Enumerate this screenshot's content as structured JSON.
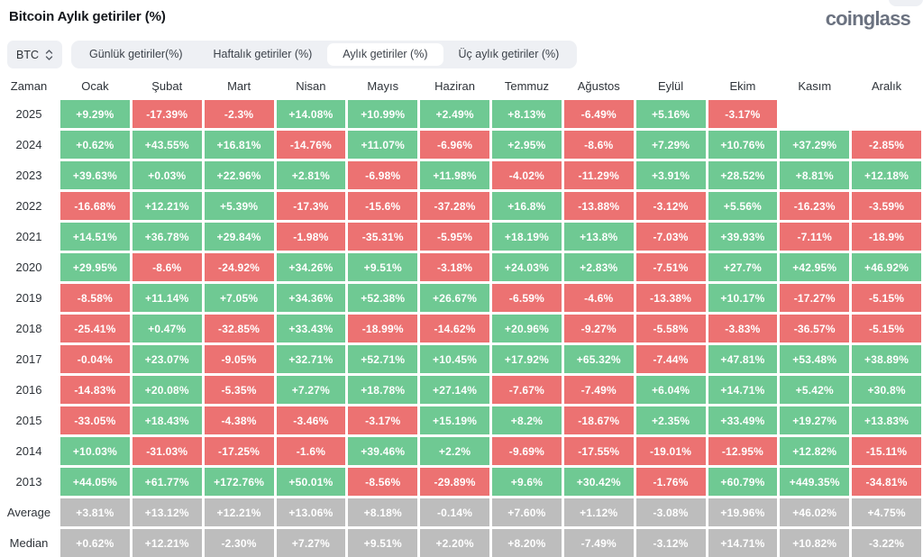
{
  "header": {
    "title": "Bitcoin Aylık getiriler (%)",
    "logo": "coinglass"
  },
  "toolbar": {
    "symbol": "BTC",
    "tabs": [
      {
        "label": "Günlük getiriler(%)",
        "active": false
      },
      {
        "label": "Haftalık getiriler (%)",
        "active": false
      },
      {
        "label": "Aylık getiriler (%)",
        "active": true
      },
      {
        "label": "Üç aylık getiriler (%)",
        "active": false
      }
    ]
  },
  "chart_data": {
    "type": "heatmap",
    "title": "Bitcoin Aylık getiriler (%)",
    "colors": {
      "positive": "#6FC993",
      "negative": "#EC7272",
      "summary": "#BDBDBD"
    },
    "columns": [
      "Zaman",
      "Ocak",
      "Şubat",
      "Mart",
      "Nisan",
      "Mayıs",
      "Haziran",
      "Temmuz",
      "Ağustos",
      "Eylül",
      "Ekim",
      "Kasım",
      "Aralık"
    ],
    "rows": [
      {
        "label": "2025",
        "kind": "year",
        "values": [
          "+9.29%",
          "-17.39%",
          "-2.3%",
          "+14.08%",
          "+10.99%",
          "+2.49%",
          "+8.13%",
          "-6.49%",
          "+5.16%",
          "-3.17%",
          null,
          null
        ]
      },
      {
        "label": "2024",
        "kind": "year",
        "values": [
          "+0.62%",
          "+43.55%",
          "+16.81%",
          "-14.76%",
          "+11.07%",
          "-6.96%",
          "+2.95%",
          "-8.6%",
          "+7.29%",
          "+10.76%",
          "+37.29%",
          "-2.85%"
        ]
      },
      {
        "label": "2023",
        "kind": "year",
        "values": [
          "+39.63%",
          "+0.03%",
          "+22.96%",
          "+2.81%",
          "-6.98%",
          "+11.98%",
          "-4.02%",
          "-11.29%",
          "+3.91%",
          "+28.52%",
          "+8.81%",
          "+12.18%"
        ]
      },
      {
        "label": "2022",
        "kind": "year",
        "values": [
          "-16.68%",
          "+12.21%",
          "+5.39%",
          "-17.3%",
          "-15.6%",
          "-37.28%",
          "+16.8%",
          "-13.88%",
          "-3.12%",
          "+5.56%",
          "-16.23%",
          "-3.59%"
        ]
      },
      {
        "label": "2021",
        "kind": "year",
        "values": [
          "+14.51%",
          "+36.78%",
          "+29.84%",
          "-1.98%",
          "-35.31%",
          "-5.95%",
          "+18.19%",
          "+13.8%",
          "-7.03%",
          "+39.93%",
          "-7.11%",
          "-18.9%"
        ]
      },
      {
        "label": "2020",
        "kind": "year",
        "values": [
          "+29.95%",
          "-8.6%",
          "-24.92%",
          "+34.26%",
          "+9.51%",
          "-3.18%",
          "+24.03%",
          "+2.83%",
          "-7.51%",
          "+27.7%",
          "+42.95%",
          "+46.92%"
        ]
      },
      {
        "label": "2019",
        "kind": "year",
        "values": [
          "-8.58%",
          "+11.14%",
          "+7.05%",
          "+34.36%",
          "+52.38%",
          "+26.67%",
          "-6.59%",
          "-4.6%",
          "-13.38%",
          "+10.17%",
          "-17.27%",
          "-5.15%"
        ]
      },
      {
        "label": "2018",
        "kind": "year",
        "values": [
          "-25.41%",
          "+0.47%",
          "-32.85%",
          "+33.43%",
          "-18.99%",
          "-14.62%",
          "+20.96%",
          "-9.27%",
          "-5.58%",
          "-3.83%",
          "-36.57%",
          "-5.15%"
        ]
      },
      {
        "label": "2017",
        "kind": "year",
        "values": [
          "-0.04%",
          "+23.07%",
          "-9.05%",
          "+32.71%",
          "+52.71%",
          "+10.45%",
          "+17.92%",
          "+65.32%",
          "-7.44%",
          "+47.81%",
          "+53.48%",
          "+38.89%"
        ]
      },
      {
        "label": "2016",
        "kind": "year",
        "values": [
          "-14.83%",
          "+20.08%",
          "-5.35%",
          "+7.27%",
          "+18.78%",
          "+27.14%",
          "-7.67%",
          "-7.49%",
          "+6.04%",
          "+14.71%",
          "+5.42%",
          "+30.8%"
        ]
      },
      {
        "label": "2015",
        "kind": "year",
        "values": [
          "-33.05%",
          "+18.43%",
          "-4.38%",
          "-3.46%",
          "-3.17%",
          "+15.19%",
          "+8.2%",
          "-18.67%",
          "+2.35%",
          "+33.49%",
          "+19.27%",
          "+13.83%"
        ]
      },
      {
        "label": "2014",
        "kind": "year",
        "values": [
          "+10.03%",
          "-31.03%",
          "-17.25%",
          "-1.6%",
          "+39.46%",
          "+2.2%",
          "-9.69%",
          "-17.55%",
          "-19.01%",
          "-12.95%",
          "+12.82%",
          "-15.11%"
        ]
      },
      {
        "label": "2013",
        "kind": "year",
        "values": [
          "+44.05%",
          "+61.77%",
          "+172.76%",
          "+50.01%",
          "-8.56%",
          "-29.89%",
          "+9.6%",
          "+30.42%",
          "-1.76%",
          "+60.79%",
          "+449.35%",
          "-34.81%"
        ]
      },
      {
        "label": "Average",
        "kind": "summary",
        "values": [
          "+3.81%",
          "+13.12%",
          "+12.21%",
          "+13.06%",
          "+8.18%",
          "-0.14%",
          "+7.60%",
          "+1.12%",
          "-3.08%",
          "+19.96%",
          "+46.02%",
          "+4.75%"
        ]
      },
      {
        "label": "Median",
        "kind": "summary",
        "values": [
          "+0.62%",
          "+12.21%",
          "-2.30%",
          "+7.27%",
          "+9.51%",
          "+2.20%",
          "+8.20%",
          "-7.49%",
          "-3.12%",
          "+14.71%",
          "+10.82%",
          "-3.22%"
        ]
      }
    ]
  }
}
